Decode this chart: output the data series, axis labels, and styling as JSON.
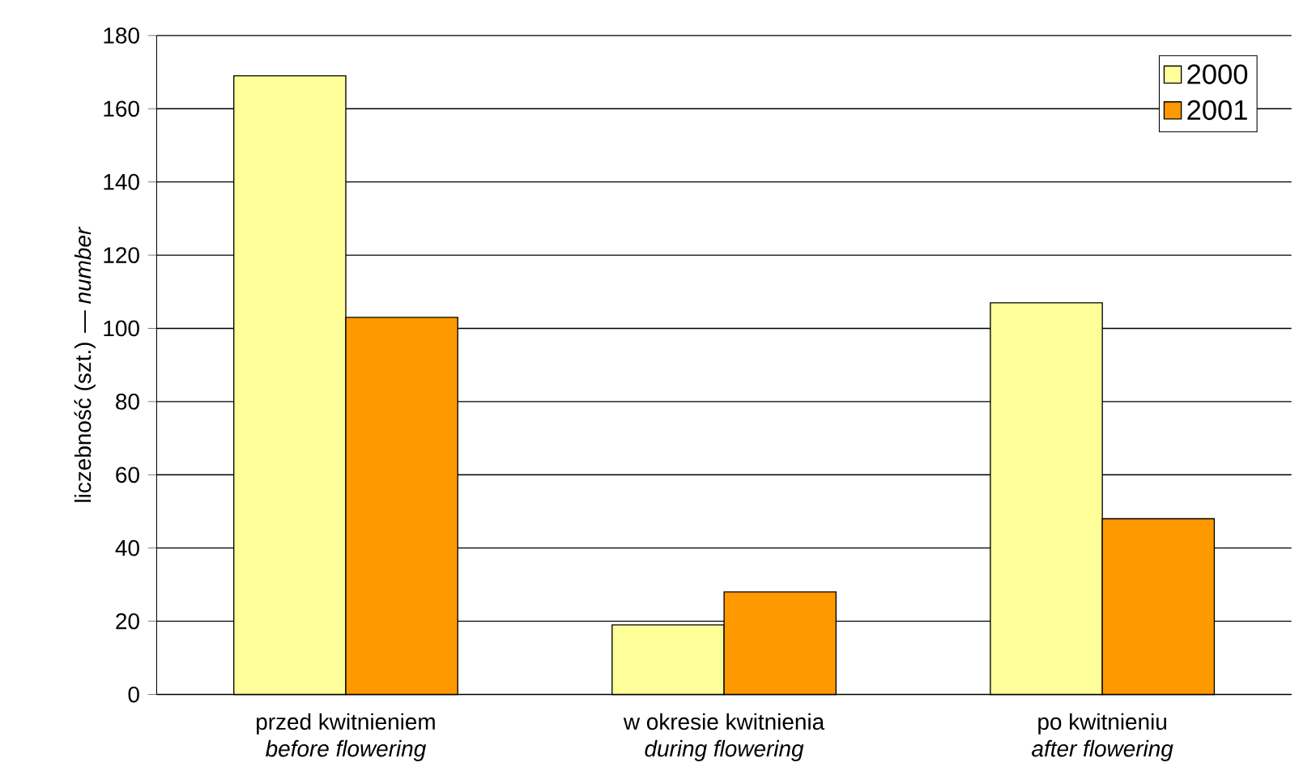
{
  "chart_data": {
    "type": "bar",
    "ylabel": "liczebność (szt.) — *number*",
    "categories": [
      "przed kwitnieniem\n*before flowering*",
      "w okresie kwitnienia\n*during flowering*",
      "po kwitnieniu\n*after flowering*"
    ],
    "series": [
      {
        "name": "2000",
        "color": "#ffff99",
        "values": [
          169,
          19,
          107
        ]
      },
      {
        "name": "2001",
        "color": "#ff9900",
        "values": [
          103,
          28,
          48
        ]
      }
    ],
    "ylim": [
      0,
      180
    ],
    "yticks": [
      0,
      20,
      40,
      60,
      80,
      100,
      120,
      140,
      160,
      180
    ],
    "grid": "y",
    "legend": "top right"
  }
}
